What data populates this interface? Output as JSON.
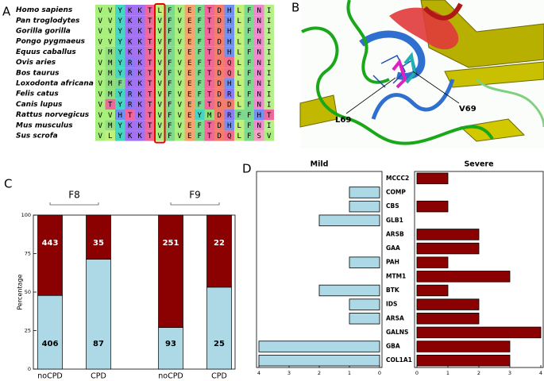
{
  "panel_labels": [
    "A",
    "B",
    "C",
    "D"
  ],
  "alignment": {
    "species": [
      "Homo sapiens",
      "Pan troglodytes",
      "Gorilla gorilla",
      "Pongo pygmaeus",
      "Equus caballus",
      "Ovis aries",
      "Bos taurus",
      "Loxodonta africana",
      "Felis catus",
      "Canis lupus",
      "Rattus norvegicus",
      "Mus musculus",
      "Sus scrofa"
    ],
    "residues": [
      [
        "V",
        "V",
        "Y",
        "K",
        "K",
        "T",
        "L",
        "F",
        "V",
        "E",
        "F",
        "T",
        "D",
        "H",
        "L",
        "F",
        "N",
        "I"
      ],
      [
        "V",
        "V",
        "Y",
        "K",
        "K",
        "T",
        "V",
        "F",
        "V",
        "E",
        "F",
        "T",
        "D",
        "H",
        "L",
        "F",
        "N",
        "I"
      ],
      [
        "V",
        "V",
        "Y",
        "K",
        "K",
        "T",
        "V",
        "F",
        "V",
        "E",
        "F",
        "T",
        "D",
        "H",
        "L",
        "F",
        "N",
        "I"
      ],
      [
        "V",
        "V",
        "Y",
        "K",
        "K",
        "T",
        "V",
        "F",
        "V",
        "E",
        "F",
        "T",
        "D",
        "H",
        "L",
        "F",
        "N",
        "I"
      ],
      [
        "V",
        "M",
        "Y",
        "K",
        "K",
        "T",
        "V",
        "F",
        "V",
        "E",
        "F",
        "T",
        "D",
        "H",
        "L",
        "F",
        "N",
        "I"
      ],
      [
        "V",
        "M",
        "Y",
        "R",
        "K",
        "T",
        "V",
        "F",
        "V",
        "E",
        "F",
        "T",
        "D",
        "Q",
        "L",
        "F",
        "N",
        "I"
      ],
      [
        "V",
        "M",
        "Y",
        "R",
        "K",
        "T",
        "V",
        "F",
        "V",
        "E",
        "F",
        "T",
        "D",
        "Q",
        "L",
        "F",
        "N",
        "I"
      ],
      [
        "V",
        "M",
        "F",
        "K",
        "K",
        "T",
        "V",
        "F",
        "V",
        "E",
        "F",
        "T",
        "D",
        "H",
        "L",
        "F",
        "N",
        "I"
      ],
      [
        "V",
        "M",
        "Y",
        "R",
        "K",
        "T",
        "V",
        "F",
        "V",
        "E",
        "F",
        "T",
        "D",
        "R",
        "L",
        "F",
        "N",
        "I"
      ],
      [
        "V",
        "T",
        "Y",
        "R",
        "K",
        "T",
        "V",
        "F",
        "V",
        "E",
        "F",
        "T",
        "D",
        "D",
        "L",
        "F",
        "N",
        "I"
      ],
      [
        "V",
        "V",
        "H",
        "T",
        "K",
        "T",
        "V",
        "F",
        "V",
        "E",
        "Y",
        "M",
        "D",
        "R",
        "F",
        "F",
        "H",
        "T"
      ],
      [
        "V",
        "M",
        "Y",
        "K",
        "K",
        "T",
        "V",
        "F",
        "V",
        "E",
        "F",
        "T",
        "D",
        "H",
        "L",
        "F",
        "N",
        "I"
      ],
      [
        "V",
        "L",
        "Y",
        "K",
        "K",
        "T",
        "V",
        "F",
        "V",
        "E",
        "F",
        "T",
        "D",
        "Q",
        "L",
        "F",
        "S",
        "V"
      ]
    ],
    "residue_colors": {
      "V": "#a9ef7e",
      "I": "#b5f08a",
      "L": "#c2f07c",
      "M": "#8fe07c",
      "F": "#7dd98c",
      "Y": "#44d6c2",
      "K": "#a272f2",
      "R": "#8b7cf6",
      "T": "#f0679c",
      "E": "#f5a470",
      "D": "#f47d6c",
      "H": "#7190f4",
      "Q": "#f36e8b",
      "N": "#f08ad0",
      "S": "#f4a2c2"
    }
  },
  "structure": {
    "labels": [
      "L69",
      "V69"
    ]
  },
  "chart_data": [
    {
      "type": "stacked_percent_bar",
      "ylabel": "Percentage",
      "categories": [
        "noCPD",
        "CPD",
        "noCPD",
        "CPD"
      ],
      "groups": [
        "F8",
        "F9"
      ],
      "series": [
        {
          "color": "#add8e6",
          "values": [
            406,
            87,
            93,
            25
          ]
        },
        {
          "color": "#8b0000",
          "values": [
            443,
            35,
            251,
            22
          ]
        }
      ],
      "ylim": [
        0,
        100
      ],
      "yticks": [
        0,
        25,
        50,
        75,
        100
      ]
    },
    {
      "type": "butterfly_bar",
      "categories": [
        "MCCC2",
        "COMP",
        "CBS",
        "GLB1",
        "ARSB",
        "GAA",
        "PAH",
        "MTM1",
        "BTK",
        "IDS",
        "ARSA",
        "GALNS",
        "GBA",
        "COL1A1"
      ],
      "series": [
        {
          "name": "Mild",
          "color": "#add8e6",
          "values": [
            0,
            1,
            1,
            2,
            0,
            0,
            1,
            0,
            2,
            1,
            1,
            0,
            4,
            4
          ],
          "xlim": [
            4,
            0
          ],
          "xticks": [
            4,
            3,
            2,
            1,
            0
          ]
        },
        {
          "name": "Severe",
          "color": "#8b0000",
          "values": [
            1,
            0,
            1,
            0,
            2,
            2,
            1,
            3,
            1,
            2,
            2,
            4,
            3,
            3
          ],
          "xlim": [
            0,
            4
          ],
          "xticks": [
            0,
            1,
            2,
            3,
            4
          ]
        }
      ]
    }
  ]
}
